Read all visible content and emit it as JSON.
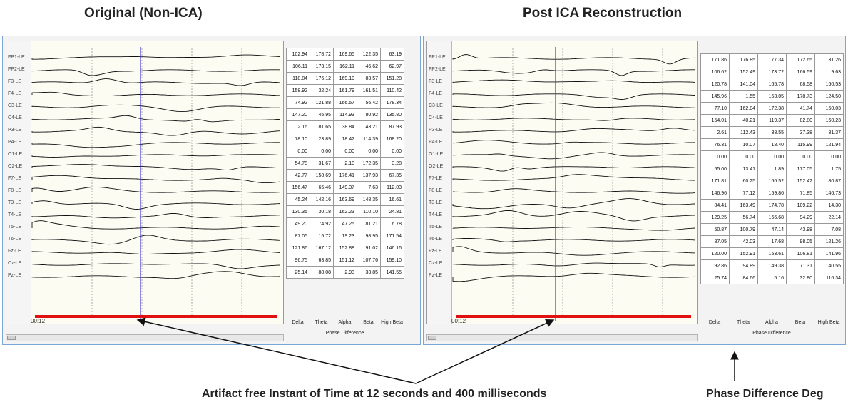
{
  "left_title": "Original (Non-ICA)",
  "right_title": "Post ICA Reconstruction",
  "channels": [
    "FP1-LE",
    "FP2-LE",
    "F3-LE",
    "F4-LE",
    "C3-LE",
    "C4-LE",
    "P3-LE",
    "P4-LE",
    "O1-LE",
    "O2-LE",
    "F7-LE",
    "F8-LE",
    "T3-LE",
    "T4-LE",
    "T5-LE",
    "T6-LE",
    "Fz-LE",
    "Cz-LE",
    "Pz-LE"
  ],
  "time_label": "00:12",
  "band_headers": [
    "Delta",
    "Theta",
    "Alpha",
    "Beta",
    "High Beta"
  ],
  "phase_label": "Phase Difference",
  "left_table": [
    [
      "102.94",
      "178.72",
      "169.65",
      "122.35",
      "63.19"
    ],
    [
      "106.11",
      "173.15",
      "162.11",
      "46.62",
      "62.97"
    ],
    [
      "118.84",
      "176.12",
      "169.10",
      "83.57",
      "151.28"
    ],
    [
      "158.92",
      "32.24",
      "161.79",
      "161.51",
      "110.42"
    ],
    [
      "74.92",
      "121.88",
      "166.57",
      "56.42",
      "178.34"
    ],
    [
      "147.20",
      "45.95",
      "114.93",
      "80.92",
      "135.80"
    ],
    [
      "2.16",
      "81.65",
      "38.84",
      "43.21",
      "87.93"
    ],
    [
      "78.10",
      "23.89",
      "18.42",
      "114.39",
      "168.20"
    ],
    [
      "0.00",
      "0.00",
      "0.00",
      "0.00",
      "0.00"
    ],
    [
      "54.78",
      "31.67",
      "2.10",
      "172.35",
      "3.28"
    ],
    [
      "42.77",
      "158.69",
      "176.41",
      "137.93",
      "67.35"
    ],
    [
      "156.47",
      "65.46",
      "149.37",
      "7.63",
      "112.03"
    ],
    [
      "45.24",
      "142.16",
      "163.69",
      "148.35",
      "16.61"
    ],
    [
      "130.35",
      "30.18",
      "162.23",
      "110.10",
      "24.81"
    ],
    [
      "49.20",
      "74.92",
      "47.25",
      "81.21",
      "6.78"
    ],
    [
      "87.05",
      "15.72",
      "19.23",
      "98.95",
      "171.54"
    ],
    [
      "121.86",
      "167.12",
      "152.88",
      "91.02",
      "146.16"
    ],
    [
      "96.75",
      "63.85",
      "151.12",
      "107.76",
      "159.10"
    ],
    [
      "25.14",
      "88.08",
      "2.93",
      "33.85",
      "141.55"
    ]
  ],
  "right_table": [
    [
      "171.86",
      "176.85",
      "177.34",
      "172.65",
      "31.26"
    ],
    [
      "106.62",
      "152.49",
      "173.72",
      "166.59",
      "9.63"
    ],
    [
      "120.78",
      "141.04",
      "165.78",
      "68.58",
      "160.53"
    ],
    [
      "145.96",
      "1.55",
      "153.05",
      "178.73",
      "124.50"
    ],
    [
      "77.10",
      "162.84",
      "172.38",
      "41.74",
      "160.03"
    ],
    [
      "154.01",
      "40.21",
      "119.37",
      "82.80",
      "160.23"
    ],
    [
      "2.61",
      "112.43",
      "38.55",
      "37.38",
      "81.37"
    ],
    [
      "76.31",
      "10.07",
      "18.40",
      "115.99",
      "121.94"
    ],
    [
      "0.00",
      "0.00",
      "0.00",
      "0.00",
      "0.00"
    ],
    [
      "55.00",
      "13.41",
      "1.89",
      "177.05",
      "1.75"
    ],
    [
      "171.81",
      "60.25",
      "166.52",
      "152.42",
      "80.87"
    ],
    [
      "146.96",
      "77.12",
      "159.86",
      "71.85",
      "146.73"
    ],
    [
      "84.41",
      "163.49",
      "174.78",
      "109.22",
      "14.30"
    ],
    [
      "129.25",
      "56.74",
      "166.68",
      "94.29",
      "22.14"
    ],
    [
      "50.87",
      "100.79",
      "47.14",
      "43.98",
      "7.08"
    ],
    [
      "87.05",
      "42.03",
      "17.68",
      "98.05",
      "121.26"
    ],
    [
      "120.00",
      "152.91",
      "153.61",
      "106.81",
      "141.96"
    ],
    [
      "92.86",
      "94.89",
      "149.38",
      "71.31",
      "140.55"
    ],
    [
      "25.74",
      "84.66",
      "5.16",
      "32.80",
      "116.34"
    ]
  ],
  "caption_artifact": "Artifact free Instant of Time at 12 seconds and 400 milliseconds",
  "caption_phase": "Phase Difference Deg",
  "colors": {
    "cursor": "#3b3bd0",
    "timebar": "#e11111",
    "trace": "#111111",
    "panel_border": "#7aa6d6"
  }
}
